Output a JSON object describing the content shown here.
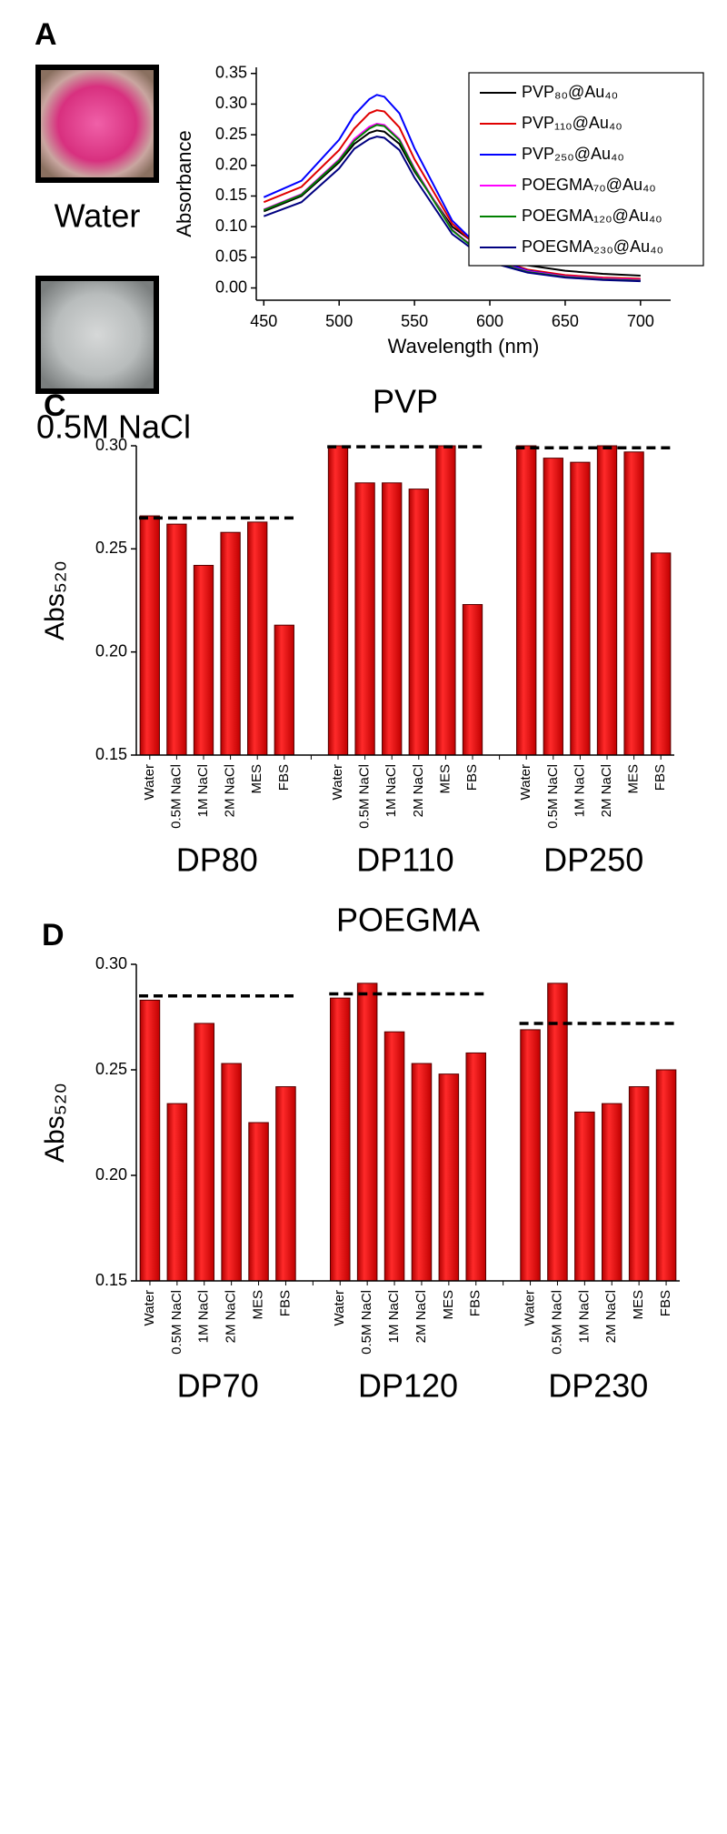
{
  "panel_labels": [
    "A",
    "C",
    "D"
  ],
  "photo_labels": [
    "Water",
    "0.5M NaCl"
  ],
  "chart_data": [
    {
      "type": "line",
      "x_label": "Wavelength (nm)",
      "y_label": "Absorbance",
      "x": [
        450,
        475,
        500,
        510,
        520,
        525,
        530,
        540,
        550,
        575,
        600,
        625,
        650,
        675,
        700
      ],
      "series": [
        {
          "name": "PVP₈₀@Au₄₀",
          "color": "#000000",
          "values": [
            0.125,
            0.15,
            0.205,
            0.235,
            0.253,
            0.257,
            0.255,
            0.235,
            0.19,
            0.1,
            0.055,
            0.037,
            0.028,
            0.023,
            0.02
          ]
        },
        {
          "name": "PVP₁₁₀@Au₄₀",
          "color": "#e00000",
          "values": [
            0.14,
            0.165,
            0.225,
            0.26,
            0.285,
            0.29,
            0.288,
            0.262,
            0.21,
            0.105,
            0.05,
            0.03,
            0.021,
            0.017,
            0.015
          ]
        },
        {
          "name": "PVP₂₅₀@Au₄₀",
          "color": "#0000ff",
          "values": [
            0.148,
            0.175,
            0.242,
            0.282,
            0.308,
            0.315,
            0.312,
            0.285,
            0.228,
            0.11,
            0.05,
            0.028,
            0.019,
            0.015,
            0.013
          ]
        },
        {
          "name": "POEGMA₇₀@Au₄₀",
          "color": "#ff00ff",
          "values": [
            0.128,
            0.153,
            0.21,
            0.243,
            0.263,
            0.268,
            0.266,
            0.243,
            0.195,
            0.095,
            0.045,
            0.027,
            0.019,
            0.015,
            0.013
          ]
        },
        {
          "name": "POEGMA₁₂₀@Au₄₀",
          "color": "#008000",
          "values": [
            0.127,
            0.152,
            0.208,
            0.24,
            0.26,
            0.266,
            0.264,
            0.241,
            0.193,
            0.094,
            0.044,
            0.026,
            0.018,
            0.014,
            0.012
          ]
        },
        {
          "name": "POEGMA₂₃₀@Au₄₀",
          "color": "#000080",
          "values": [
            0.117,
            0.14,
            0.195,
            0.227,
            0.243,
            0.247,
            0.245,
            0.225,
            0.18,
            0.088,
            0.042,
            0.025,
            0.017,
            0.013,
            0.011
          ]
        }
      ],
      "xlim": [
        445,
        720
      ],
      "xticks": [
        450,
        500,
        550,
        600,
        650,
        700
      ],
      "ylim": [
        -0.02,
        0.36
      ],
      "yticks": [
        {
          "value": 0,
          "label": "0.00"
        },
        0.05,
        {
          "value": 0.1,
          "label": "0.10"
        },
        0.15,
        {
          "value": 0.2,
          "label": "0.20"
        },
        0.25,
        {
          "value": 0.3,
          "label": "0.30"
        },
        0.35
      ],
      "legend": "upper right"
    },
    {
      "type": "bar",
      "title": "PVP",
      "y_label": "Abs₅₂₀",
      "color": "#e00000",
      "categories": [
        "Water",
        "0.5M NaCl",
        "1M NaCl",
        "2M NaCl",
        "MES",
        "FBS",
        null,
        "Water",
        "0.5M NaCl",
        "1M NaCl",
        "2M NaCl",
        "MES",
        "FBS",
        null,
        "Water",
        "0.5M NaCl",
        "1M NaCl",
        "2M NaCl",
        "MES",
        "FBS"
      ],
      "values": [
        0.266,
        0.262,
        0.242,
        0.258,
        0.263,
        0.213,
        null,
        0.3,
        0.282,
        0.282,
        0.279,
        0.3,
        0.223,
        null,
        0.3,
        0.294,
        0.292,
        0.3,
        0.297,
        0.248
      ],
      "groups": [
        "DP80",
        "DP110",
        "DP250"
      ],
      "reference_lines": [
        0.265,
        0.2995,
        0.299
      ],
      "ylim": [
        0.15,
        0.3
      ],
      "yticks": [
        0.15,
        {
          "value": 0.2,
          "label": "0.20"
        },
        0.25,
        {
          "value": 0.3,
          "label": "0.30"
        }
      ]
    },
    {
      "type": "bar",
      "title": "POEGMA",
      "y_label": "Abs₅₂₀",
      "color": "#e00000",
      "categories": [
        "Water",
        "0.5M NaCl",
        "1M NaCl",
        "2M NaCl",
        "MES",
        "FBS",
        null,
        "Water",
        "0.5M NaCl",
        "1M NaCl",
        "2M NaCl",
        "MES",
        "FBS",
        null,
        "Water",
        "0.5M NaCl",
        "1M NaCl",
        "2M NaCl",
        "MES",
        "FBS"
      ],
      "values": [
        0.283,
        0.234,
        0.272,
        0.253,
        0.225,
        0.242,
        null,
        0.284,
        0.291,
        0.268,
        0.253,
        0.248,
        0.258,
        null,
        0.269,
        0.291,
        0.23,
        0.234,
        0.242,
        0.25
      ],
      "groups": [
        "DP70",
        "DP120",
        "DP230"
      ],
      "reference_lines": [
        0.285,
        0.286,
        0.272
      ],
      "ylim": [
        0.15,
        0.3
      ],
      "yticks": [
        0.15,
        {
          "value": 0.2,
          "label": "0.20"
        },
        0.25,
        {
          "value": 0.3,
          "label": "0.30"
        }
      ]
    }
  ]
}
